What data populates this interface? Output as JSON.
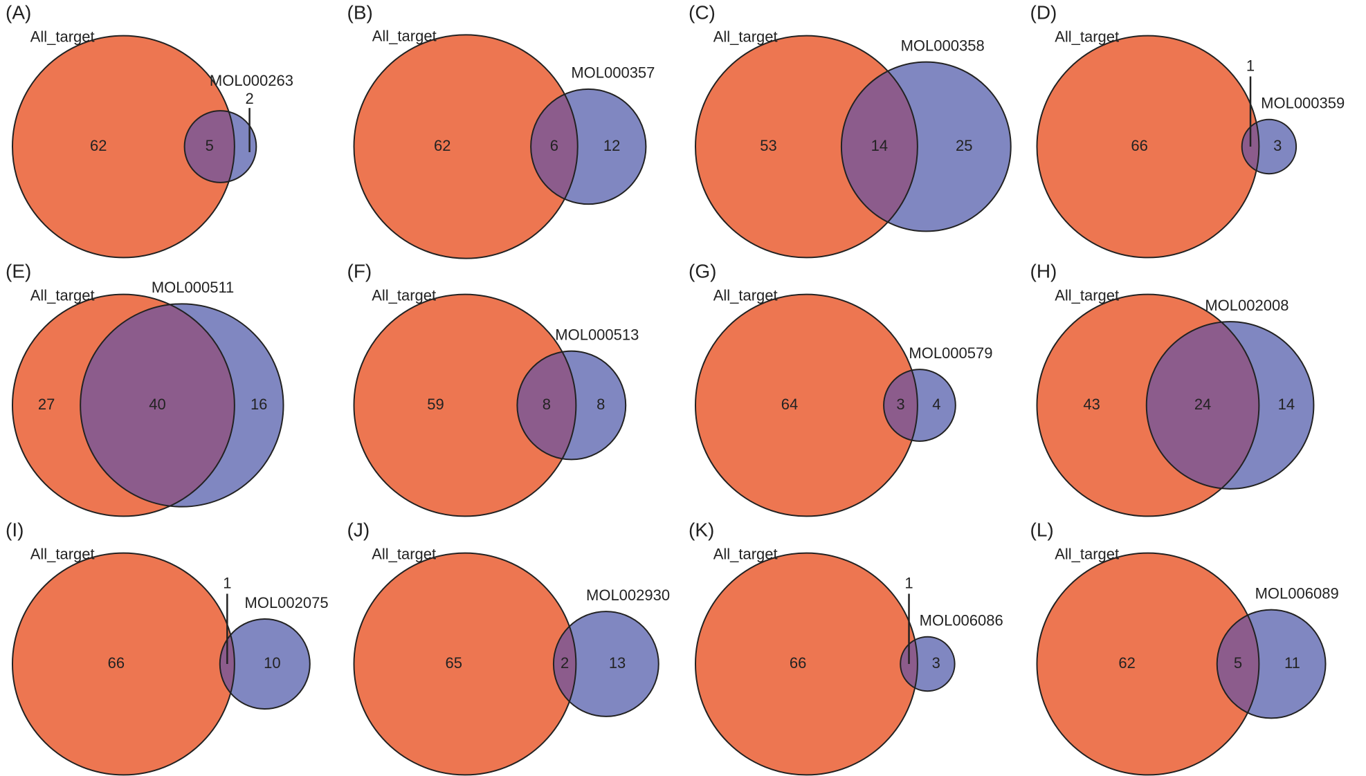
{
  "chart_data": [
    {
      "type": "venn",
      "panel": "(A)",
      "sets": [
        "All_target",
        "MOL000263"
      ],
      "values": [
        62,
        5,
        2
      ],
      "colors": [
        "#ed7651",
        "#8087c1"
      ],
      "overlap_color": "#8c5c8c"
    },
    {
      "type": "venn",
      "panel": "(B)",
      "sets": [
        "All_target",
        "MOL000357"
      ],
      "values": [
        62,
        6,
        12
      ],
      "colors": [
        "#ed7651",
        "#8087c1"
      ],
      "overlap_color": "#8c5c8c"
    },
    {
      "type": "venn",
      "panel": "(C)",
      "sets": [
        "All_target",
        "MOL000358"
      ],
      "values": [
        53,
        14,
        25
      ],
      "colors": [
        "#ed7651",
        "#8087c1"
      ],
      "overlap_color": "#8c5c8c"
    },
    {
      "type": "venn",
      "panel": "(D)",
      "sets": [
        "All_target",
        "MOL000359"
      ],
      "values": [
        66,
        1,
        3
      ],
      "colors": [
        "#ed7651",
        "#8087c1"
      ],
      "overlap_color": "#8c5c8c"
    },
    {
      "type": "venn",
      "panel": "(E)",
      "sets": [
        "All_target",
        "MOL000511"
      ],
      "values": [
        27,
        40,
        16
      ],
      "colors": [
        "#ed7651",
        "#8087c1"
      ],
      "overlap_color": "#8c5c8c"
    },
    {
      "type": "venn",
      "panel": "(F)",
      "sets": [
        "All_target",
        "MOL000513"
      ],
      "values": [
        59,
        8,
        8
      ],
      "colors": [
        "#ed7651",
        "#8087c1"
      ],
      "overlap_color": "#8c5c8c"
    },
    {
      "type": "venn",
      "panel": "(G)",
      "sets": [
        "All_target",
        "MOL000579"
      ],
      "values": [
        64,
        3,
        4
      ],
      "colors": [
        "#ed7651",
        "#8087c1"
      ],
      "overlap_color": "#8c5c8c"
    },
    {
      "type": "venn",
      "panel": "(H)",
      "sets": [
        "All_target",
        "MOL002008"
      ],
      "values": [
        43,
        24,
        14
      ],
      "colors": [
        "#ed7651",
        "#8087c1"
      ],
      "overlap_color": "#8c5c8c"
    },
    {
      "type": "venn",
      "panel": "(I)",
      "sets": [
        "All_target",
        "MOL002075"
      ],
      "values": [
        66,
        1,
        10
      ],
      "colors": [
        "#ed7651",
        "#8087c1"
      ],
      "overlap_color": "#8c5c8c"
    },
    {
      "type": "venn",
      "panel": "(J)",
      "sets": [
        "All_target",
        "MOL002930"
      ],
      "values": [
        65,
        2,
        13
      ],
      "colors": [
        "#ed7651",
        "#8087c1"
      ],
      "overlap_color": "#8c5c8c"
    },
    {
      "type": "venn",
      "panel": "(K)",
      "sets": [
        "All_target",
        "MOL006086"
      ],
      "values": [
        66,
        1,
        3
      ],
      "colors": [
        "#ed7651",
        "#8087c1"
      ],
      "overlap_color": "#8c5c8c"
    },
    {
      "type": "venn",
      "panel": "(L)",
      "sets": [
        "All_target",
        "MOL006089"
      ],
      "values": [
        62,
        5,
        11
      ],
      "colors": [
        "#ed7651",
        "#8087c1"
      ],
      "overlap_color": "#8c5c8c"
    }
  ]
}
